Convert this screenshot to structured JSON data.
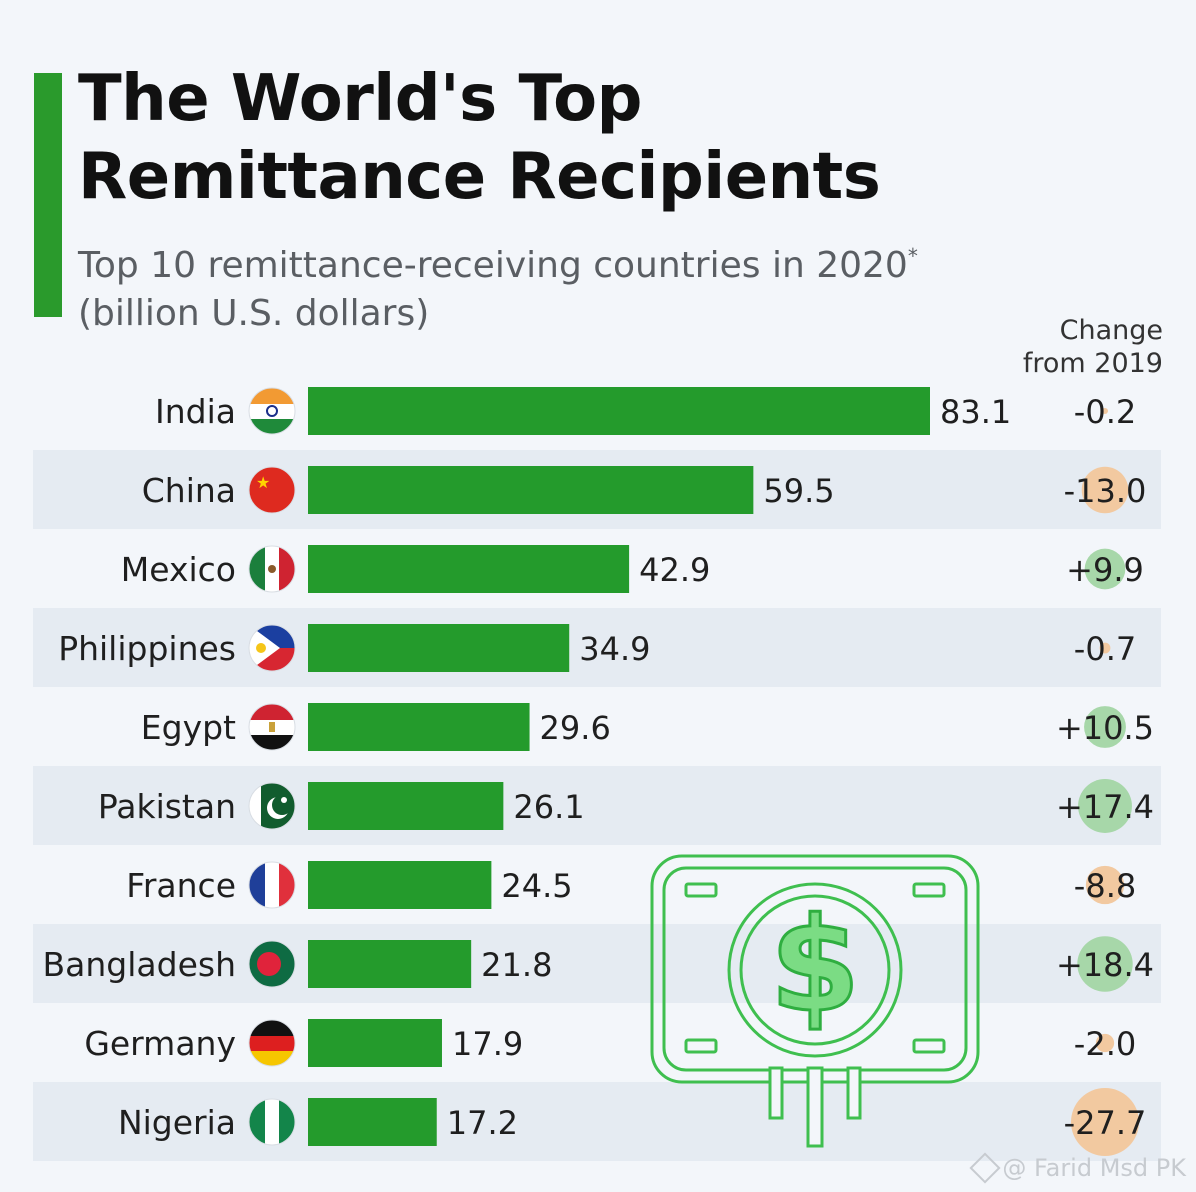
{
  "title_line1": "The World's Top",
  "title_line2": "Remittance Recipients",
  "subtitle_line1": "Top 10 remittance-receiving countries in 2020",
  "subtitle_asterisk": "*",
  "subtitle_line2": "(billion U.S. dollars)",
  "change_header_line1": "Change",
  "change_header_line2": "from 2019",
  "watermark": "@ Farid Msd PK",
  "colors": {
    "bar": "#249b2c",
    "accent": "#2a9a2c",
    "positive_bubble": "#a7d7a9",
    "negative_bubble": "#f2c9a0"
  },
  "chart_data": {
    "type": "bar",
    "orientation": "horizontal",
    "title": "The World's Top Remittance Recipients",
    "subtitle": "Top 10 remittance-receiving countries in 2020* (billion U.S. dollars)",
    "categories": [
      "India",
      "China",
      "Mexico",
      "Philippines",
      "Egypt",
      "Pakistan",
      "France",
      "Bangladesh",
      "Germany",
      "Nigeria"
    ],
    "values": [
      83.1,
      59.5,
      42.9,
      34.9,
      29.6,
      26.1,
      24.5,
      21.8,
      17.9,
      17.2
    ],
    "value_labels": [
      "83.1",
      "59.5",
      "42.9",
      "34.9",
      "29.6",
      "26.1",
      "24.5",
      "21.8",
      "17.9",
      "17.2"
    ],
    "change_from_2019": [
      -0.2,
      -13.0,
      9.9,
      -0.7,
      10.5,
      17.4,
      -8.8,
      18.4,
      -2.0,
      -27.7
    ],
    "change_labels": [
      "-0.2",
      "-13.0",
      "+9.9",
      "-0.7",
      "+10.5",
      "+17.4",
      "-8.8",
      "+18.4",
      "-2.0",
      "-27.7"
    ],
    "xlim": [
      0,
      83.1
    ],
    "grid": false,
    "legend": "none"
  }
}
